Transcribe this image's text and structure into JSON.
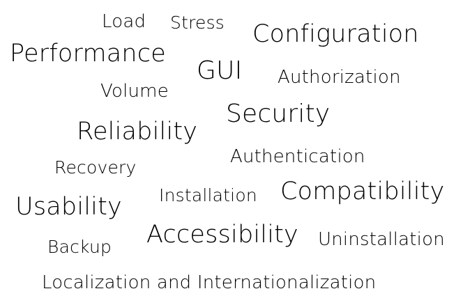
{
  "word_cloud": {
    "words": {
      "load": "Load",
      "stress": "Stress",
      "configuration": "Configuration",
      "performance": "Performance",
      "gui": "GUI",
      "authorization": "Authorization",
      "volume": "Volume",
      "security": "Security",
      "reliability": "Reliability",
      "authentication": "Authentication",
      "recovery": "Recovery",
      "compatibility": "Compatibility",
      "installation": "Installation",
      "usability": "Usability",
      "accessibility": "Accessibility",
      "uninstallation": "Uninstallation",
      "backup": "Backup",
      "localization": "Localization and Internationalization"
    },
    "colors": {
      "text": "#000000",
      "background": "#ffffff"
    }
  }
}
